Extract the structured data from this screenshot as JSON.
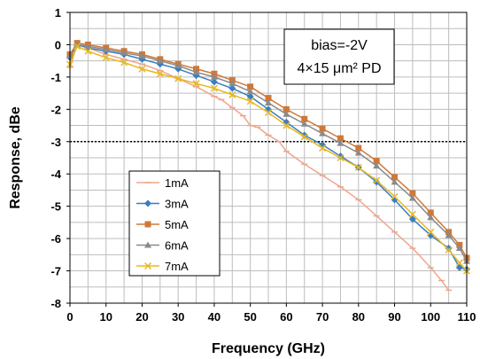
{
  "chart_data": {
    "type": "line",
    "title": "",
    "xlabel": "Frequency (GHz)",
    "ylabel": "Response, dBe",
    "xlim": [
      0,
      110
    ],
    "ylim": [
      -8,
      1
    ],
    "x_ticks": [
      "0",
      "10",
      "20",
      "30",
      "40",
      "50",
      "60",
      "70",
      "80",
      "90",
      "100",
      "110"
    ],
    "y_ticks": [
      "1",
      "0",
      "-1",
      "-2",
      "-3",
      "-4",
      "-5",
      "-6",
      "-7",
      "-8"
    ],
    "grid": true,
    "legend_position": "bottom-left",
    "reference_line": {
      "y": -3,
      "style": "dotted",
      "color": "#000000"
    },
    "annotation": [
      "bias=-2V",
      "4×15 μm² PD"
    ],
    "series": [
      {
        "name": "1mA",
        "color": "#f0a58e",
        "marker": "dash",
        "x": [
          0,
          2,
          5,
          10,
          15,
          20,
          25,
          30,
          35,
          40,
          42,
          45,
          48,
          50,
          52,
          55,
          58,
          60,
          65,
          70,
          75,
          80,
          85,
          90,
          95,
          100,
          103,
          105
        ],
        "y": [
          -0.7,
          0.0,
          -0.1,
          -0.3,
          -0.45,
          -0.6,
          -0.8,
          -1.05,
          -1.3,
          -1.6,
          -1.7,
          -1.95,
          -2.2,
          -2.5,
          -2.55,
          -2.8,
          -3.0,
          -3.3,
          -3.7,
          -4.05,
          -4.4,
          -4.8,
          -5.3,
          -5.8,
          -6.3,
          -6.9,
          -7.3,
          -7.6
        ]
      },
      {
        "name": "3mA",
        "color": "#3a7ec0",
        "marker": "diamond",
        "x": [
          0,
          2,
          5,
          10,
          15,
          20,
          25,
          30,
          35,
          40,
          45,
          50,
          55,
          60,
          65,
          70,
          75,
          80,
          85,
          90,
          95,
          100,
          105,
          108,
          110
        ],
        "y": [
          -0.4,
          0.0,
          -0.1,
          -0.2,
          -0.3,
          -0.45,
          -0.6,
          -0.75,
          -0.95,
          -1.15,
          -1.35,
          -1.6,
          -2.0,
          -2.4,
          -2.8,
          -3.1,
          -3.45,
          -3.8,
          -4.25,
          -4.8,
          -5.4,
          -5.9,
          -6.3,
          -6.9,
          -6.95
        ]
      },
      {
        "name": "5mA",
        "color": "#d07838",
        "marker": "square",
        "x": [
          0,
          2,
          5,
          10,
          15,
          20,
          25,
          30,
          35,
          40,
          45,
          50,
          55,
          60,
          65,
          70,
          75,
          80,
          85,
          90,
          95,
          100,
          105,
          108,
          110
        ],
        "y": [
          -0.3,
          0.05,
          0.0,
          -0.1,
          -0.2,
          -0.3,
          -0.45,
          -0.6,
          -0.75,
          -0.9,
          -1.1,
          -1.3,
          -1.65,
          -2.0,
          -2.3,
          -2.6,
          -2.9,
          -3.2,
          -3.6,
          -4.1,
          -4.6,
          -5.2,
          -5.8,
          -6.2,
          -6.6
        ]
      },
      {
        "name": "6mA",
        "color": "#8a8a8a",
        "marker": "triangle",
        "x": [
          0,
          2,
          5,
          10,
          15,
          20,
          25,
          30,
          35,
          40,
          45,
          50,
          55,
          60,
          65,
          70,
          75,
          80,
          85,
          90,
          95,
          100,
          105,
          108,
          110
        ],
        "y": [
          -0.35,
          0.0,
          -0.05,
          -0.15,
          -0.25,
          -0.35,
          -0.5,
          -0.65,
          -0.85,
          -1.0,
          -1.2,
          -1.45,
          -1.8,
          -2.15,
          -2.45,
          -2.75,
          -3.05,
          -3.35,
          -3.75,
          -4.25,
          -4.75,
          -5.35,
          -5.9,
          -6.3,
          -6.7
        ]
      },
      {
        "name": "7mA",
        "color": "#e8b820",
        "marker": "x",
        "x": [
          0,
          2,
          5,
          10,
          15,
          20,
          25,
          30,
          35,
          40,
          45,
          50,
          55,
          60,
          65,
          70,
          75,
          80,
          85,
          90,
          95,
          100,
          105,
          108,
          110
        ],
        "y": [
          -0.6,
          -0.05,
          -0.2,
          -0.4,
          -0.55,
          -0.75,
          -0.9,
          -1.05,
          -1.2,
          -1.35,
          -1.55,
          -1.75,
          -2.1,
          -2.5,
          -2.85,
          -3.2,
          -3.5,
          -3.8,
          -4.2,
          -4.7,
          -5.25,
          -5.8,
          -6.35,
          -6.75,
          -7.0
        ]
      }
    ]
  }
}
